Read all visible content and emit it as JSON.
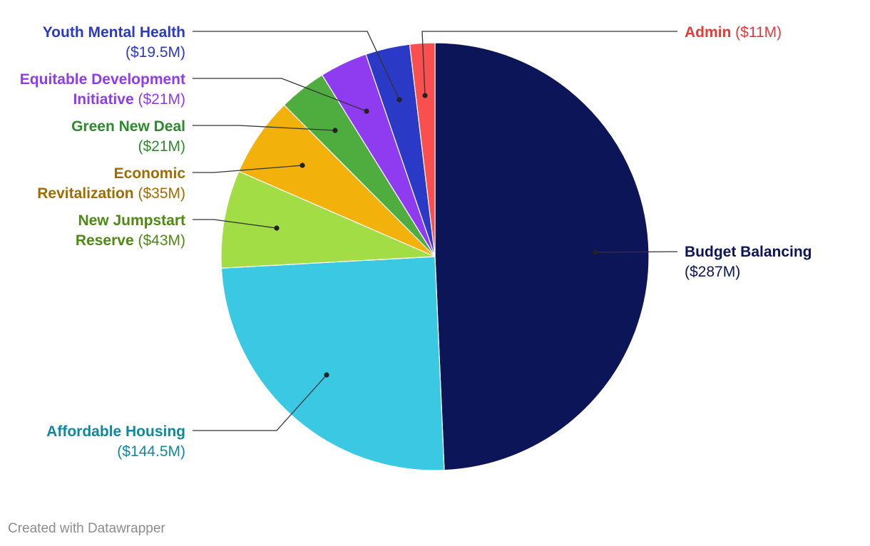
{
  "chart_data": {
    "type": "pie",
    "title": "",
    "unit": "$M",
    "slices": [
      {
        "name": "Budget Balancing",
        "value": 287,
        "value_label": "($287M)",
        "color": "#0c1558",
        "label_color": "#0c1558"
      },
      {
        "name": "Affordable Housing",
        "value": 144.5,
        "value_label": "($144.5M)",
        "color": "#3ac8e3",
        "label_color": "#0e8a9e"
      },
      {
        "name": "New Jumpstart Reserve",
        "value": 43,
        "value_label": "($43M)",
        "color": "#a3dd45",
        "label_color": "#4d8a12"
      },
      {
        "name": "Economic Revitalization",
        "value": 35,
        "value_label": "($35M)",
        "color": "#f2b10b",
        "label_color": "#9e6c00"
      },
      {
        "name": "Green New Deal",
        "value": 21,
        "value_label": "($21M)",
        "color": "#4fac3f",
        "label_color": "#2d8a2d"
      },
      {
        "name": "Equitable Development Initiative",
        "value": 21,
        "value_label": "($21M)",
        "color": "#8f3bf0",
        "label_color": "#8f3bf0"
      },
      {
        "name": "Youth Mental Health",
        "value": 19.5,
        "value_label": "($19.5M)",
        "color": "#2a39c6",
        "label_color": "#2a39c6"
      },
      {
        "name": "Admin",
        "value": 11,
        "value_label": "($11M)",
        "color": "#f94f4f",
        "label_color": "#e63a3a"
      }
    ]
  },
  "footer": {
    "credit": "Created with Datawrapper"
  }
}
